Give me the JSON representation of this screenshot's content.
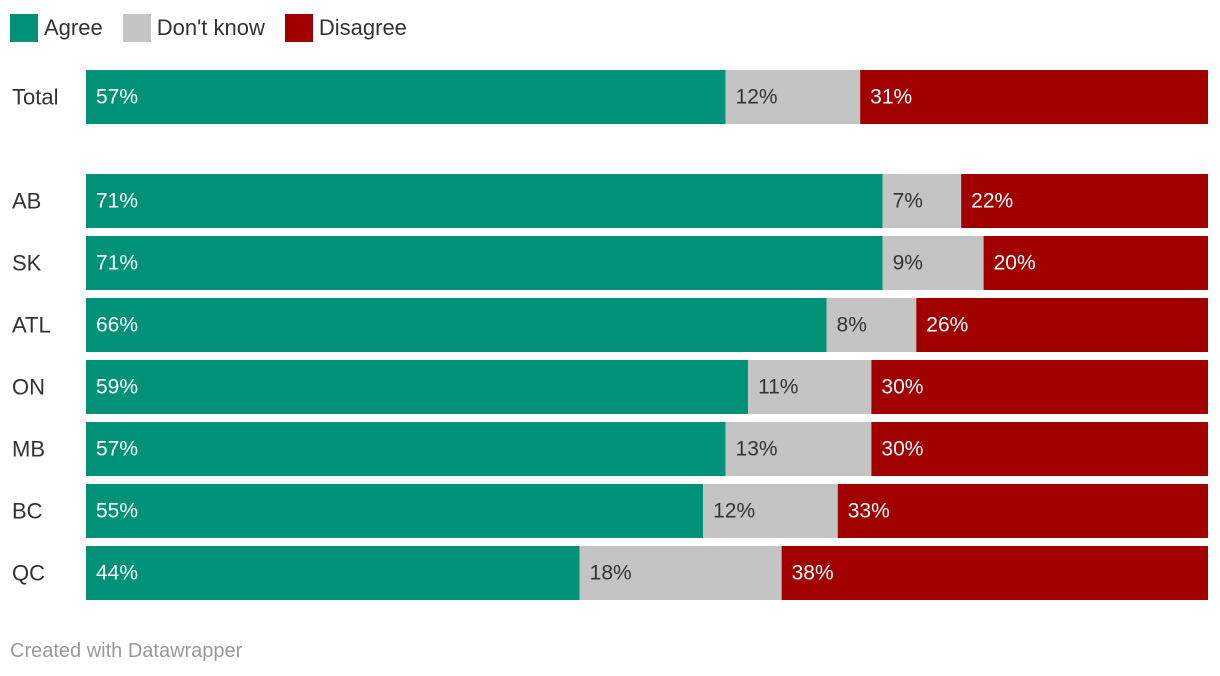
{
  "chart_data": {
    "type": "bar",
    "orientation": "horizontal",
    "stacked": true,
    "title": "",
    "xlabel": "",
    "ylabel": "",
    "xlim": [
      0,
      100
    ],
    "unit": "%",
    "categories": [
      "Total",
      "AB",
      "SK",
      "ATL",
      "ON",
      "MB",
      "BC",
      "QC"
    ],
    "series": [
      {
        "name": "Agree",
        "color": "#009279",
        "label_color": "#ffffff",
        "values": [
          57,
          71,
          71,
          66,
          59,
          57,
          55,
          44
        ]
      },
      {
        "name": "Don't know",
        "color": "#c4c4c4",
        "label_color": "#333333",
        "values": [
          12,
          7,
          9,
          8,
          11,
          13,
          12,
          18
        ]
      },
      {
        "name": "Disagree",
        "color": "#a00000",
        "label_color": "#ffffff",
        "values": [
          31,
          22,
          20,
          26,
          30,
          30,
          33,
          38
        ]
      }
    ],
    "legend_position": "top-left"
  },
  "footer": {
    "credit": "Created with Datawrapper"
  }
}
